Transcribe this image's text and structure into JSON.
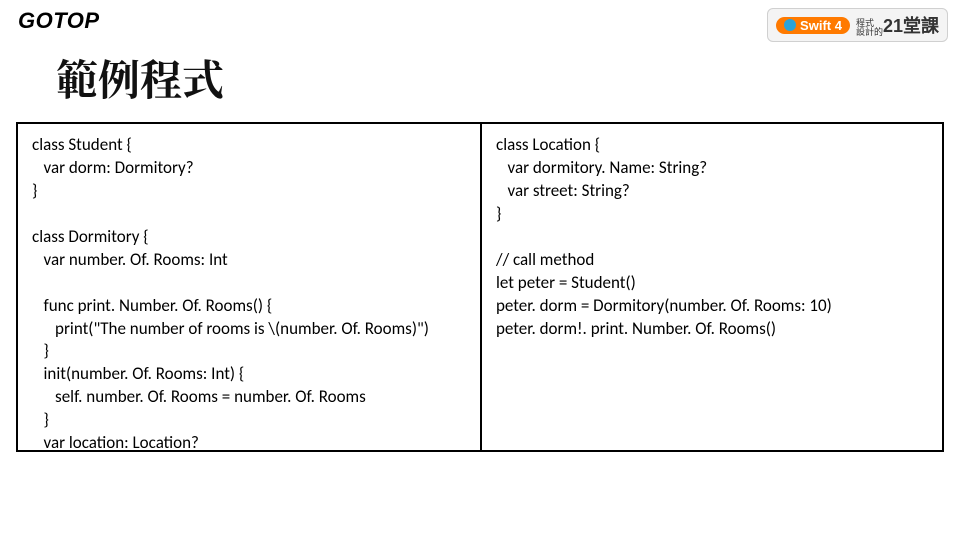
{
  "header": {
    "logo": "GOTOP",
    "swift_label": "Swift 4",
    "course_small": "程式\n設計的",
    "course_big": "21堂課"
  },
  "title": "範例程式",
  "code": {
    "left": "class Student {\n   var dorm: Dormitory?\n}\n\nclass Dormitory {\n   var number. Of. Rooms: Int\n\n   func print. Number. Of. Rooms() {\n      print(\"The number of rooms is \\(number. Of. Rooms)\")\n   }\n   init(number. Of. Rooms: Int) {\n      self. number. Of. Rooms = number. Of. Rooms\n   }\n   var location: Location?\n}",
    "right": "class Location {\n   var dormitory. Name: String?\n   var street: String?\n}\n\n// call method\nlet peter = Student()\npeter. dorm = Dormitory(number. Of. Rooms: 10)\npeter. dorm!. print. Number. Of. Rooms()"
  },
  "colors": {
    "background": "#ffffff",
    "border": "#000000",
    "swift_orange": "#ff7a00",
    "swift_blue": "#2aa3d8"
  }
}
